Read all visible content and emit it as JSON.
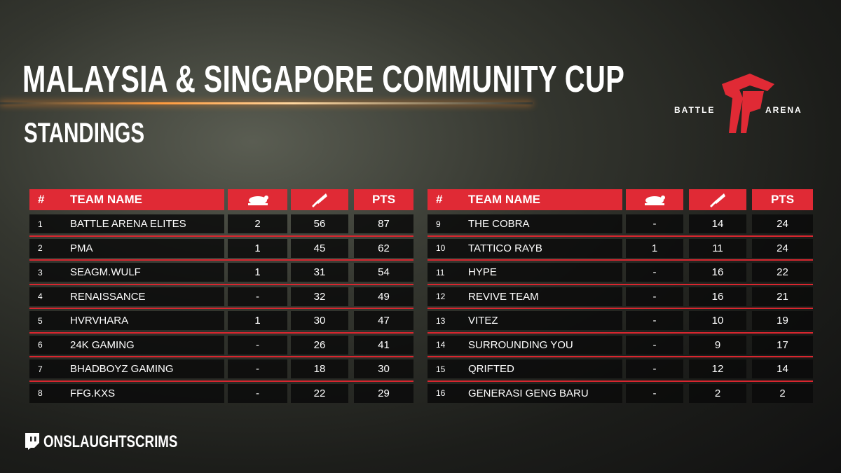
{
  "header": {
    "title": "MALAYSIA & SINGAPORE COMMUNITY CUP",
    "subtitle": "STANDINGS",
    "logo": {
      "left": "BATTLE",
      "right": "ARENA"
    }
  },
  "tables": [
    {
      "header": {
        "rank": "#",
        "team": "TEAM NAME",
        "pts": "PTS"
      },
      "rows": [
        [
          1,
          "BATTLE ARENA ELITES",
          2,
          56,
          87
        ],
        [
          2,
          "PMA",
          1,
          45,
          62
        ],
        [
          3,
          "SEAGM.WULF",
          1,
          31,
          54
        ],
        [
          4,
          "RENAISSANCE",
          "-",
          32,
          49
        ],
        [
          5,
          "HVRVHARA",
          1,
          30,
          47
        ],
        [
          6,
          "24K GAMING",
          "-",
          26,
          41
        ],
        [
          7,
          "BHADBOYZ GAMING",
          "-",
          18,
          30
        ],
        [
          8,
          "FFG.KXS",
          "-",
          22,
          29
        ]
      ]
    },
    {
      "header": {
        "rank": "#",
        "team": "TEAM NAME",
        "pts": "PTS"
      },
      "rows": [
        [
          9,
          "THE COBRA",
          "-",
          14,
          24
        ],
        [
          10,
          "TATTICO RAYB",
          1,
          11,
          24
        ],
        [
          11,
          "HYPE",
          "-",
          16,
          22
        ],
        [
          12,
          "REVIVE TEAM",
          "-",
          16,
          21
        ],
        [
          13,
          "VITEZ",
          "-",
          10,
          19
        ],
        [
          14,
          "SURROUNDING YOU",
          "-",
          9,
          17
        ],
        [
          15,
          "QRIFTED",
          "-",
          12,
          14
        ],
        [
          16,
          "GENERASI GENG BARU",
          "-",
          2,
          2
        ]
      ]
    }
  ],
  "footer": {
    "handle": "ONSLAUGHTSCRIMS"
  }
}
